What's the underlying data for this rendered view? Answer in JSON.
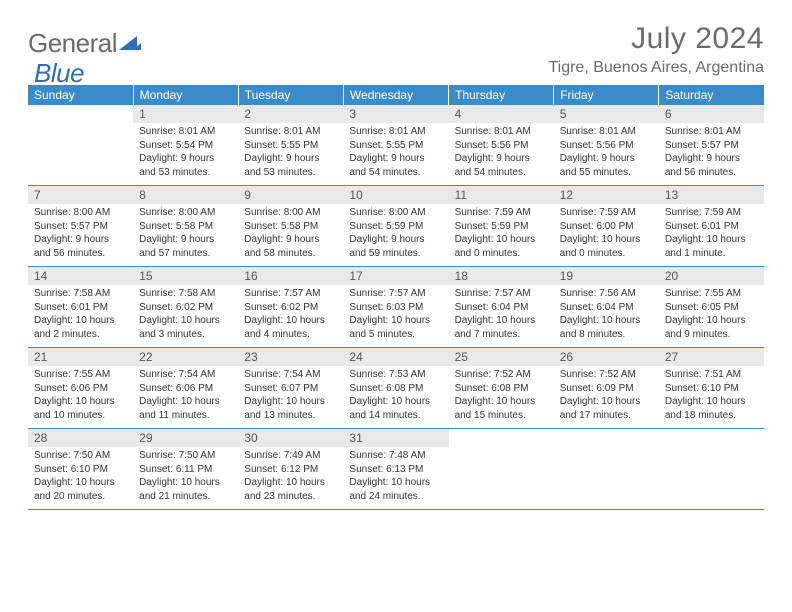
{
  "logo": {
    "general": "General",
    "blue": "Blue"
  },
  "title": "July 2024",
  "location": "Tigre, Buenos Aires, Argentina",
  "weekdays": [
    "Sunday",
    "Monday",
    "Tuesday",
    "Wednesday",
    "Thursday",
    "Friday",
    "Saturday"
  ],
  "colors": {
    "header_bg": "#3b8bc9",
    "header_text": "#ffffff",
    "daynum_bg": "#e9e9e9",
    "border": "#3b8bc9",
    "title_color": "#6b6b6b",
    "logo_blue": "#2d6fb6",
    "body_text": "#333333"
  },
  "weeks": [
    [
      {
        "num": "",
        "sunrise": "",
        "sunset": "",
        "daylight1": "",
        "daylight2": ""
      },
      {
        "num": "1",
        "sunrise": "Sunrise: 8:01 AM",
        "sunset": "Sunset: 5:54 PM",
        "daylight1": "Daylight: 9 hours",
        "daylight2": "and 53 minutes."
      },
      {
        "num": "2",
        "sunrise": "Sunrise: 8:01 AM",
        "sunset": "Sunset: 5:55 PM",
        "daylight1": "Daylight: 9 hours",
        "daylight2": "and 53 minutes."
      },
      {
        "num": "3",
        "sunrise": "Sunrise: 8:01 AM",
        "sunset": "Sunset: 5:55 PM",
        "daylight1": "Daylight: 9 hours",
        "daylight2": "and 54 minutes."
      },
      {
        "num": "4",
        "sunrise": "Sunrise: 8:01 AM",
        "sunset": "Sunset: 5:56 PM",
        "daylight1": "Daylight: 9 hours",
        "daylight2": "and 54 minutes."
      },
      {
        "num": "5",
        "sunrise": "Sunrise: 8:01 AM",
        "sunset": "Sunset: 5:56 PM",
        "daylight1": "Daylight: 9 hours",
        "daylight2": "and 55 minutes."
      },
      {
        "num": "6",
        "sunrise": "Sunrise: 8:01 AM",
        "sunset": "Sunset: 5:57 PM",
        "daylight1": "Daylight: 9 hours",
        "daylight2": "and 56 minutes."
      }
    ],
    [
      {
        "num": "7",
        "sunrise": "Sunrise: 8:00 AM",
        "sunset": "Sunset: 5:57 PM",
        "daylight1": "Daylight: 9 hours",
        "daylight2": "and 56 minutes."
      },
      {
        "num": "8",
        "sunrise": "Sunrise: 8:00 AM",
        "sunset": "Sunset: 5:58 PM",
        "daylight1": "Daylight: 9 hours",
        "daylight2": "and 57 minutes."
      },
      {
        "num": "9",
        "sunrise": "Sunrise: 8:00 AM",
        "sunset": "Sunset: 5:58 PM",
        "daylight1": "Daylight: 9 hours",
        "daylight2": "and 58 minutes."
      },
      {
        "num": "10",
        "sunrise": "Sunrise: 8:00 AM",
        "sunset": "Sunset: 5:59 PM",
        "daylight1": "Daylight: 9 hours",
        "daylight2": "and 59 minutes."
      },
      {
        "num": "11",
        "sunrise": "Sunrise: 7:59 AM",
        "sunset": "Sunset: 5:59 PM",
        "daylight1": "Daylight: 10 hours",
        "daylight2": "and 0 minutes."
      },
      {
        "num": "12",
        "sunrise": "Sunrise: 7:59 AM",
        "sunset": "Sunset: 6:00 PM",
        "daylight1": "Daylight: 10 hours",
        "daylight2": "and 0 minutes."
      },
      {
        "num": "13",
        "sunrise": "Sunrise: 7:59 AM",
        "sunset": "Sunset: 6:01 PM",
        "daylight1": "Daylight: 10 hours",
        "daylight2": "and 1 minute."
      }
    ],
    [
      {
        "num": "14",
        "sunrise": "Sunrise: 7:58 AM",
        "sunset": "Sunset: 6:01 PM",
        "daylight1": "Daylight: 10 hours",
        "daylight2": "and 2 minutes."
      },
      {
        "num": "15",
        "sunrise": "Sunrise: 7:58 AM",
        "sunset": "Sunset: 6:02 PM",
        "daylight1": "Daylight: 10 hours",
        "daylight2": "and 3 minutes."
      },
      {
        "num": "16",
        "sunrise": "Sunrise: 7:57 AM",
        "sunset": "Sunset: 6:02 PM",
        "daylight1": "Daylight: 10 hours",
        "daylight2": "and 4 minutes."
      },
      {
        "num": "17",
        "sunrise": "Sunrise: 7:57 AM",
        "sunset": "Sunset: 6:03 PM",
        "daylight1": "Daylight: 10 hours",
        "daylight2": "and 5 minutes."
      },
      {
        "num": "18",
        "sunrise": "Sunrise: 7:57 AM",
        "sunset": "Sunset: 6:04 PM",
        "daylight1": "Daylight: 10 hours",
        "daylight2": "and 7 minutes."
      },
      {
        "num": "19",
        "sunrise": "Sunrise: 7:56 AM",
        "sunset": "Sunset: 6:04 PM",
        "daylight1": "Daylight: 10 hours",
        "daylight2": "and 8 minutes."
      },
      {
        "num": "20",
        "sunrise": "Sunrise: 7:55 AM",
        "sunset": "Sunset: 6:05 PM",
        "daylight1": "Daylight: 10 hours",
        "daylight2": "and 9 minutes."
      }
    ],
    [
      {
        "num": "21",
        "sunrise": "Sunrise: 7:55 AM",
        "sunset": "Sunset: 6:06 PM",
        "daylight1": "Daylight: 10 hours",
        "daylight2": "and 10 minutes."
      },
      {
        "num": "22",
        "sunrise": "Sunrise: 7:54 AM",
        "sunset": "Sunset: 6:06 PM",
        "daylight1": "Daylight: 10 hours",
        "daylight2": "and 11 minutes."
      },
      {
        "num": "23",
        "sunrise": "Sunrise: 7:54 AM",
        "sunset": "Sunset: 6:07 PM",
        "daylight1": "Daylight: 10 hours",
        "daylight2": "and 13 minutes."
      },
      {
        "num": "24",
        "sunrise": "Sunrise: 7:53 AM",
        "sunset": "Sunset: 6:08 PM",
        "daylight1": "Daylight: 10 hours",
        "daylight2": "and 14 minutes."
      },
      {
        "num": "25",
        "sunrise": "Sunrise: 7:52 AM",
        "sunset": "Sunset: 6:08 PM",
        "daylight1": "Daylight: 10 hours",
        "daylight2": "and 15 minutes."
      },
      {
        "num": "26",
        "sunrise": "Sunrise: 7:52 AM",
        "sunset": "Sunset: 6:09 PM",
        "daylight1": "Daylight: 10 hours",
        "daylight2": "and 17 minutes."
      },
      {
        "num": "27",
        "sunrise": "Sunrise: 7:51 AM",
        "sunset": "Sunset: 6:10 PM",
        "daylight1": "Daylight: 10 hours",
        "daylight2": "and 18 minutes."
      }
    ],
    [
      {
        "num": "28",
        "sunrise": "Sunrise: 7:50 AM",
        "sunset": "Sunset: 6:10 PM",
        "daylight1": "Daylight: 10 hours",
        "daylight2": "and 20 minutes."
      },
      {
        "num": "29",
        "sunrise": "Sunrise: 7:50 AM",
        "sunset": "Sunset: 6:11 PM",
        "daylight1": "Daylight: 10 hours",
        "daylight2": "and 21 minutes."
      },
      {
        "num": "30",
        "sunrise": "Sunrise: 7:49 AM",
        "sunset": "Sunset: 6:12 PM",
        "daylight1": "Daylight: 10 hours",
        "daylight2": "and 23 minutes."
      },
      {
        "num": "31",
        "sunrise": "Sunrise: 7:48 AM",
        "sunset": "Sunset: 6:13 PM",
        "daylight1": "Daylight: 10 hours",
        "daylight2": "and 24 minutes."
      },
      {
        "num": "",
        "sunrise": "",
        "sunset": "",
        "daylight1": "",
        "daylight2": ""
      },
      {
        "num": "",
        "sunrise": "",
        "sunset": "",
        "daylight1": "",
        "daylight2": ""
      },
      {
        "num": "",
        "sunrise": "",
        "sunset": "",
        "daylight1": "",
        "daylight2": ""
      }
    ]
  ]
}
